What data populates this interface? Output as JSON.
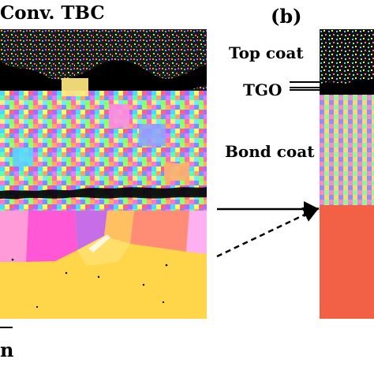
{
  "figure": {
    "title": "Conv. TBC",
    "panel_b_label": "(b)",
    "scale_bar_unit_partial": "n"
  },
  "annotations": {
    "top_coat": "Top coat",
    "tgo": "TGO",
    "bond_coat": "Bond coat"
  },
  "colors": {
    "background": "#ffffff",
    "text": "#000000",
    "substrate_a": "#ffd54a",
    "substrate_b": "#f26046",
    "tgo_black": "#000000"
  }
}
